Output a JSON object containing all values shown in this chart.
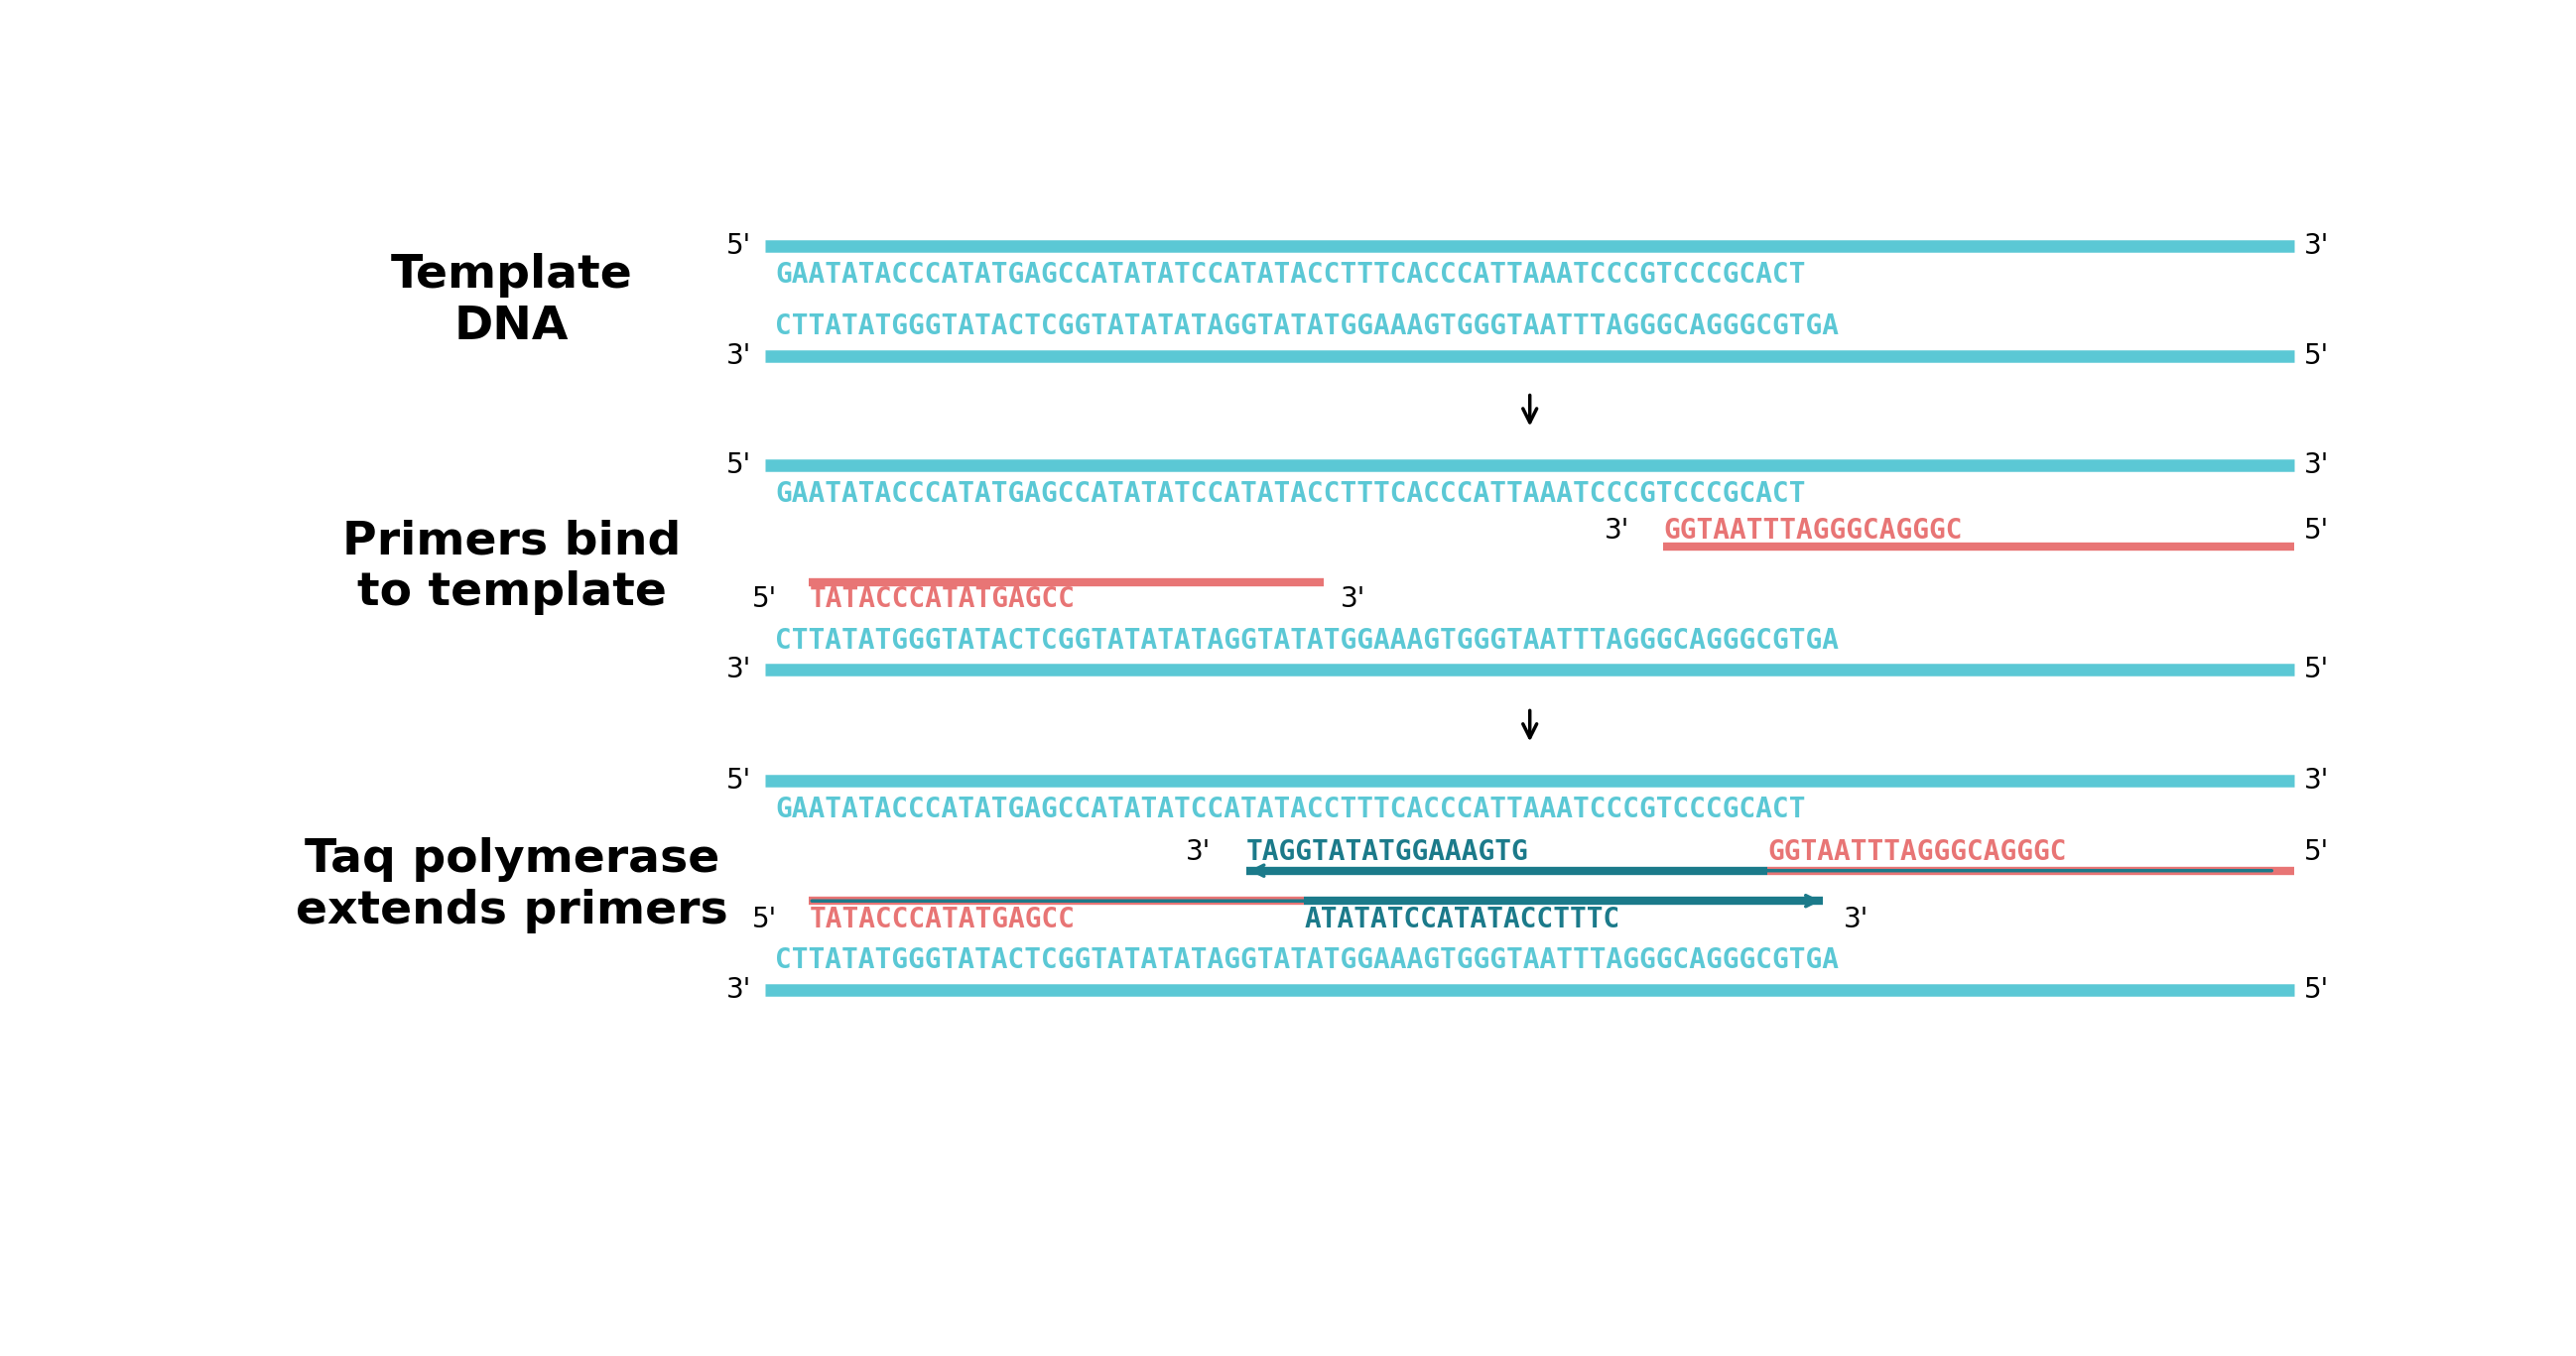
{
  "bg_color": "#ffffff",
  "cyan": "#5BC8D5",
  "dark_teal": "#1B7A8A",
  "salmon": "#E87575",
  "black": "#000000",
  "seq1_top": "GAATATACCCATATGAGCCATATATCCATATACCTTTCACCCATTAAATCCCGTCCCGCACT",
  "seq1_bot": "CTTATATGGGTATACTCGGTATATATAGGTATATGGAAAGTGGGTAATTTAGGGCAGGGCGTGA",
  "seq2_top": "GAATATACCCATATGAGCCATATATCCATATACCTTTCACCCATTAAATCCCGTCCCGCACT",
  "seq2_bot": "CTTATATGGGTATACTCGGTATATATAGGTATATGGAAAGTGGGTAATTTAGGGCAGGGCGTGA",
  "seq3_top": "GAATATACCCATATGAGCCATATATCCATATACCTTTCACCCATTAAATCCCGTCCCGCACT",
  "seq3_bot": "CTTATATGGGTATACTCGGTATATATAGGTATATGGAAAGTGGGTAATTTAGGGCAGGGCGTGA",
  "primer2_top_seq": "GGTAATTTAGGGCAGGGC",
  "primer2_bot_seq": "TATACCCATATGAGCC",
  "ext3_top_new": "TAGGTATATGGAAAGTG",
  "ext3_top_primer": "GGTAATTTAGGGCAGGGC",
  "ext3_bot_primer": "TATACCCATATGAGCC",
  "ext3_bot_new": "ATATATCCATATACCTTTC",
  "label1": "Template\nDNA",
  "label2": "Primers bind\nto template",
  "label3": "Taq polymerase\nextends primers",
  "font_seq": 20,
  "font_prime": 20,
  "font_label": 34,
  "lw_strand": 9,
  "lw_primer": 6
}
